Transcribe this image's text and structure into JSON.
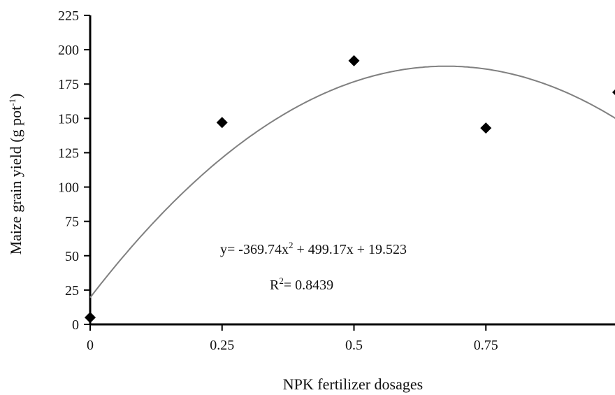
{
  "chart_data": {
    "type": "scatter",
    "xlabel": "NPK fertilizer dosages",
    "ylabel": "Maize grain yield (g pot",
    "ylabel_sup": "-1",
    "ylabel_close": ")",
    "x_ticks": [
      "0",
      "0.25",
      "0.5",
      "0.75"
    ],
    "y_ticks": [
      "0",
      "25",
      "50",
      "75",
      "100",
      "125",
      "150",
      "175",
      "200",
      "225"
    ],
    "xlim": [
      0,
      1
    ],
    "ylim": [
      0,
      225
    ],
    "grid": false,
    "points": [
      {
        "x": 0,
        "y": 5
      },
      {
        "x": 0.25,
        "y": 147
      },
      {
        "x": 0.5,
        "y": 192
      },
      {
        "x": 0.75,
        "y": 143
      },
      {
        "x": 1.0,
        "y": 169
      }
    ],
    "trendline": {
      "type": "polynomial",
      "a": -369.74,
      "b": 499.17,
      "c": 19.523
    },
    "equation": {
      "prefix": "y= -369.74x",
      "sup": "2",
      "rest": " + 499.17x + 19.523"
    },
    "r_squared": {
      "label": "R",
      "sup": "2",
      "value": "= 0.8439"
    },
    "colors": {
      "marker": "#000000",
      "trendline": "#808080",
      "axis": "#000000"
    }
  }
}
